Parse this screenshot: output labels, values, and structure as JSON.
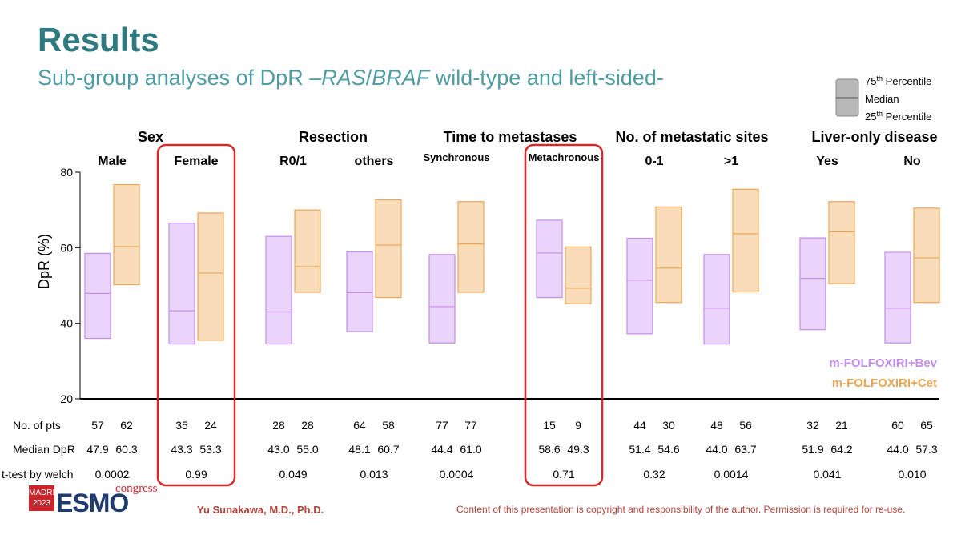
{
  "header": {
    "title": "Results",
    "subtitle_pre": "Sub-group analyses of DpR –",
    "subtitle_ital1": "RAS",
    "subtitle_slash": "/",
    "subtitle_ital2": "BRAF",
    "subtitle_post": " wild-type and left-sided-"
  },
  "footer": {
    "logo_city": "MADRID",
    "logo_year": "2023",
    "logo_mark": "ESMO",
    "logo_congress": "congress",
    "author": "Yu Sunakawa, M.D., Ph.D.",
    "copyright": "Content of this presentation is copyright and responsibility of the author. Permission is required for re-use."
  },
  "chart_data": {
    "type": "box-range",
    "ylabel": "DpR (%)",
    "ylim": [
      20,
      80
    ],
    "yticks": [
      20,
      40,
      60,
      80
    ],
    "colors": {
      "bev": "#c48ee9",
      "bev_fill": "#ead4fb",
      "cet": "#eba653",
      "cet_fill": "#f9dcba",
      "highlight": "#d42a2a"
    },
    "legend_box": {
      "top": "75th Percentile",
      "mid": "Median",
      "bottom": "25th Percentile",
      "top_sup": "th",
      "bottom_sup": "th"
    },
    "legend": [
      "m-FOLFOXIRI+Bev",
      "m-FOLFOXIRI+Cet"
    ],
    "groups": [
      {
        "name": "Sex",
        "subgroups": [
          "Male",
          "Female"
        ]
      },
      {
        "name": "Resection",
        "subgroups": [
          "R0/1",
          "others"
        ]
      },
      {
        "name": "Time to metastases",
        "subgroups": [
          "Synchronous",
          "Metachronous"
        ]
      },
      {
        "name": "No. of metastatic sites",
        "subgroups": [
          "0-1",
          ">1"
        ]
      },
      {
        "name": "Liver-only disease",
        "subgroups": [
          "Yes",
          "No"
        ]
      }
    ],
    "row_labels": [
      "No. of pts",
      "Median DpR",
      "t-test by welch"
    ],
    "subgroups": [
      {
        "label": "Male",
        "bev": {
          "q1": 36.0,
          "median": 47.9,
          "q3": 58.5,
          "n": "57",
          "median_label": "47.9"
        },
        "cet": {
          "q1": 50.2,
          "median": 60.3,
          "q3": 76.7,
          "n": "62",
          "median_label": "60.3"
        },
        "p": "0.0002",
        "highlight": false
      },
      {
        "label": "Female",
        "bev": {
          "q1": 34.5,
          "median": 43.3,
          "q3": 66.5,
          "n": "35",
          "median_label": "43.3"
        },
        "cet": {
          "q1": 35.5,
          "median": 53.3,
          "q3": 69.2,
          "n": "24",
          "median_label": "53.3"
        },
        "p": "0.99",
        "highlight": true
      },
      {
        "label": "R0/1",
        "bev": {
          "q1": 34.5,
          "median": 43.0,
          "q3": 63.0,
          "n": "28",
          "median_label": "43.0"
        },
        "cet": {
          "q1": 48.2,
          "median": 55.0,
          "q3": 70.0,
          "n": "28",
          "median_label": "55.0"
        },
        "p": "0.049",
        "highlight": false
      },
      {
        "label": "others",
        "bev": {
          "q1": 37.8,
          "median": 48.1,
          "q3": 58.9,
          "n": "64",
          "median_label": "48.1"
        },
        "cet": {
          "q1": 46.8,
          "median": 60.7,
          "q3": 72.7,
          "n": "58",
          "median_label": "60.7"
        },
        "p": "0.013",
        "highlight": false
      },
      {
        "label": "Synchronous",
        "bev": {
          "q1": 34.8,
          "median": 44.4,
          "q3": 58.2,
          "n": "77",
          "median_label": "44.4"
        },
        "cet": {
          "q1": 48.2,
          "median": 61.0,
          "q3": 72.2,
          "n": "77",
          "median_label": "61.0"
        },
        "p": "0.0004",
        "highlight": false
      },
      {
        "label": "Metachronous",
        "bev": {
          "q1": 46.8,
          "median": 58.6,
          "q3": 67.3,
          "n": "15",
          "median_label": "58.6"
        },
        "cet": {
          "q1": 45.2,
          "median": 49.3,
          "q3": 60.2,
          "n": "9",
          "median_label": "49.3"
        },
        "p": "0.71",
        "highlight": true
      },
      {
        "label": "0-1",
        "bev": {
          "q1": 37.2,
          "median": 51.4,
          "q3": 62.5,
          "n": "44",
          "median_label": "51.4"
        },
        "cet": {
          "q1": 45.5,
          "median": 54.6,
          "q3": 70.8,
          "n": "30",
          "median_label": "54.6"
        },
        "p": "0.32",
        "highlight": false
      },
      {
        "label": ">1",
        "bev": {
          "q1": 34.5,
          "median": 44.0,
          "q3": 58.2,
          "n": "48",
          "median_label": "44.0"
        },
        "cet": {
          "q1": 48.3,
          "median": 63.7,
          "q3": 75.5,
          "n": "56",
          "median_label": "63.7"
        },
        "p": "0.0014",
        "highlight": false
      },
      {
        "label": "Yes",
        "bev": {
          "q1": 38.3,
          "median": 51.9,
          "q3": 62.6,
          "n": "32",
          "median_label": "51.9"
        },
        "cet": {
          "q1": 50.5,
          "median": 64.2,
          "q3": 72.2,
          "n": "21",
          "median_label": "64.2"
        },
        "p": "0.041",
        "highlight": false
      },
      {
        "label": "No",
        "bev": {
          "q1": 34.8,
          "median": 44.0,
          "q3": 58.8,
          "n": "60",
          "median_label": "44.0"
        },
        "cet": {
          "q1": 45.5,
          "median": 57.3,
          "q3": 70.5,
          "n": "65",
          "median_label": "57.3"
        },
        "p": "0.010",
        "highlight": false
      }
    ]
  }
}
